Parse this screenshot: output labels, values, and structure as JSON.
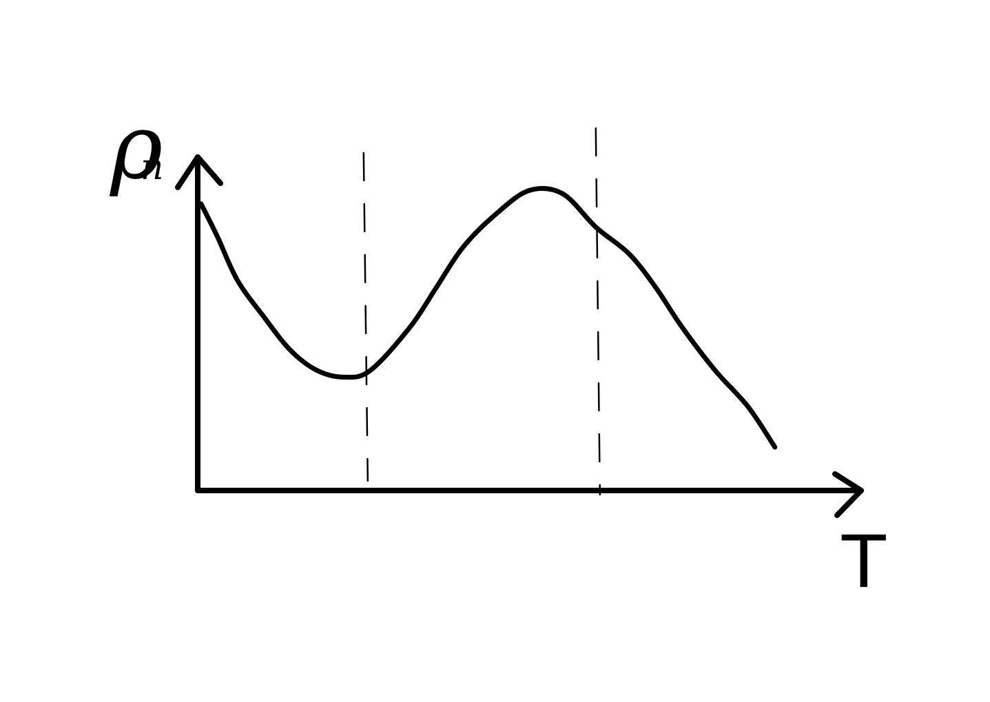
{
  "chart_data": {
    "type": "line",
    "title": "",
    "xlabel": "T",
    "ylabel": {
      "symbol": "ρ",
      "subscript": "n"
    },
    "grid": false,
    "legend": "none",
    "xlim": [
      0,
      10
    ],
    "ylim": [
      0,
      10
    ],
    "series": [
      {
        "x": [
          0.05,
          0.3,
          0.6,
          1.0,
          1.4,
          1.8,
          2.2,
          2.6,
          3.2,
          3.6,
          4.0,
          4.5,
          5.0,
          5.5,
          6.0,
          6.5,
          6.9,
          7.3,
          7.8,
          8.3,
          8.7
        ],
        "y": [
          8.6,
          7.6,
          6.3,
          5.2,
          4.2,
          3.6,
          3.4,
          3.6,
          4.9,
          6.1,
          7.3,
          8.3,
          9.0,
          8.9,
          7.9,
          7.1,
          6.1,
          4.9,
          3.6,
          2.5,
          1.3
        ]
      }
    ],
    "reference_lines_x": [
      2.5,
      6.0
    ]
  },
  "colors": {
    "ink": "#000000",
    "background": "#ffffff"
  }
}
